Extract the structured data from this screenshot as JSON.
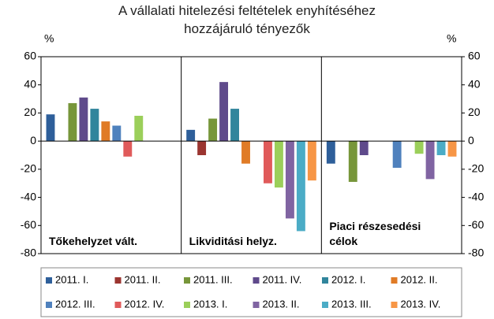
{
  "chart_data": {
    "type": "bar",
    "title": "A vállalati hitelezési feltételek enyhítéséhez hozzájáruló tényezők",
    "ylabel": "%",
    "y2label": "%",
    "categories": [
      "Tőkehelyzet vált.",
      "Likviditási helyz.",
      "Piaci részesedési célok"
    ],
    "series": [
      {
        "name": "2011. I.",
        "color": "#2e5f9a",
        "values": [
          19,
          8,
          -16
        ]
      },
      {
        "name": "2011. II.",
        "color": "#9b3530",
        "values": [
          0,
          -10,
          0
        ]
      },
      {
        "name": "2011. III.",
        "color": "#77963a",
        "values": [
          27,
          16,
          -29
        ]
      },
      {
        "name": "2011. IV.",
        "color": "#5f4a8b",
        "values": [
          31,
          42,
          -10
        ]
      },
      {
        "name": "2012. I.",
        "color": "#31859c",
        "values": [
          23,
          23,
          0
        ]
      },
      {
        "name": "2012. II.",
        "color": "#e07b26",
        "values": [
          14,
          -16,
          0
        ]
      },
      {
        "name": "2012. III.",
        "color": "#4f81bd",
        "values": [
          11,
          0,
          -19
        ]
      },
      {
        "name": "2012. IV.",
        "color": "#e05a5a",
        "values": [
          -11,
          -30,
          0
        ]
      },
      {
        "name": "2013. I.",
        "color": "#9bcf5a",
        "values": [
          18,
          -33,
          -9
        ]
      },
      {
        "name": "2013. II.",
        "color": "#8064a2",
        "values": [
          0,
          -55,
          -27
        ]
      },
      {
        "name": "2013. III.",
        "color": "#4bacc6",
        "values": [
          0,
          -64,
          -10
        ]
      },
      {
        "name": "2013. IV.",
        "color": "#f79646",
        "values": [
          0,
          -28,
          -11
        ]
      }
    ],
    "ylim": [
      -80,
      60
    ],
    "yticks": [
      -80,
      -60,
      -40,
      -20,
      0,
      20,
      40,
      60
    ],
    "y2lim": [
      -80,
      60
    ],
    "y2ticks": [
      -80,
      -60,
      -40,
      -20,
      0,
      20,
      40,
      60
    ]
  }
}
